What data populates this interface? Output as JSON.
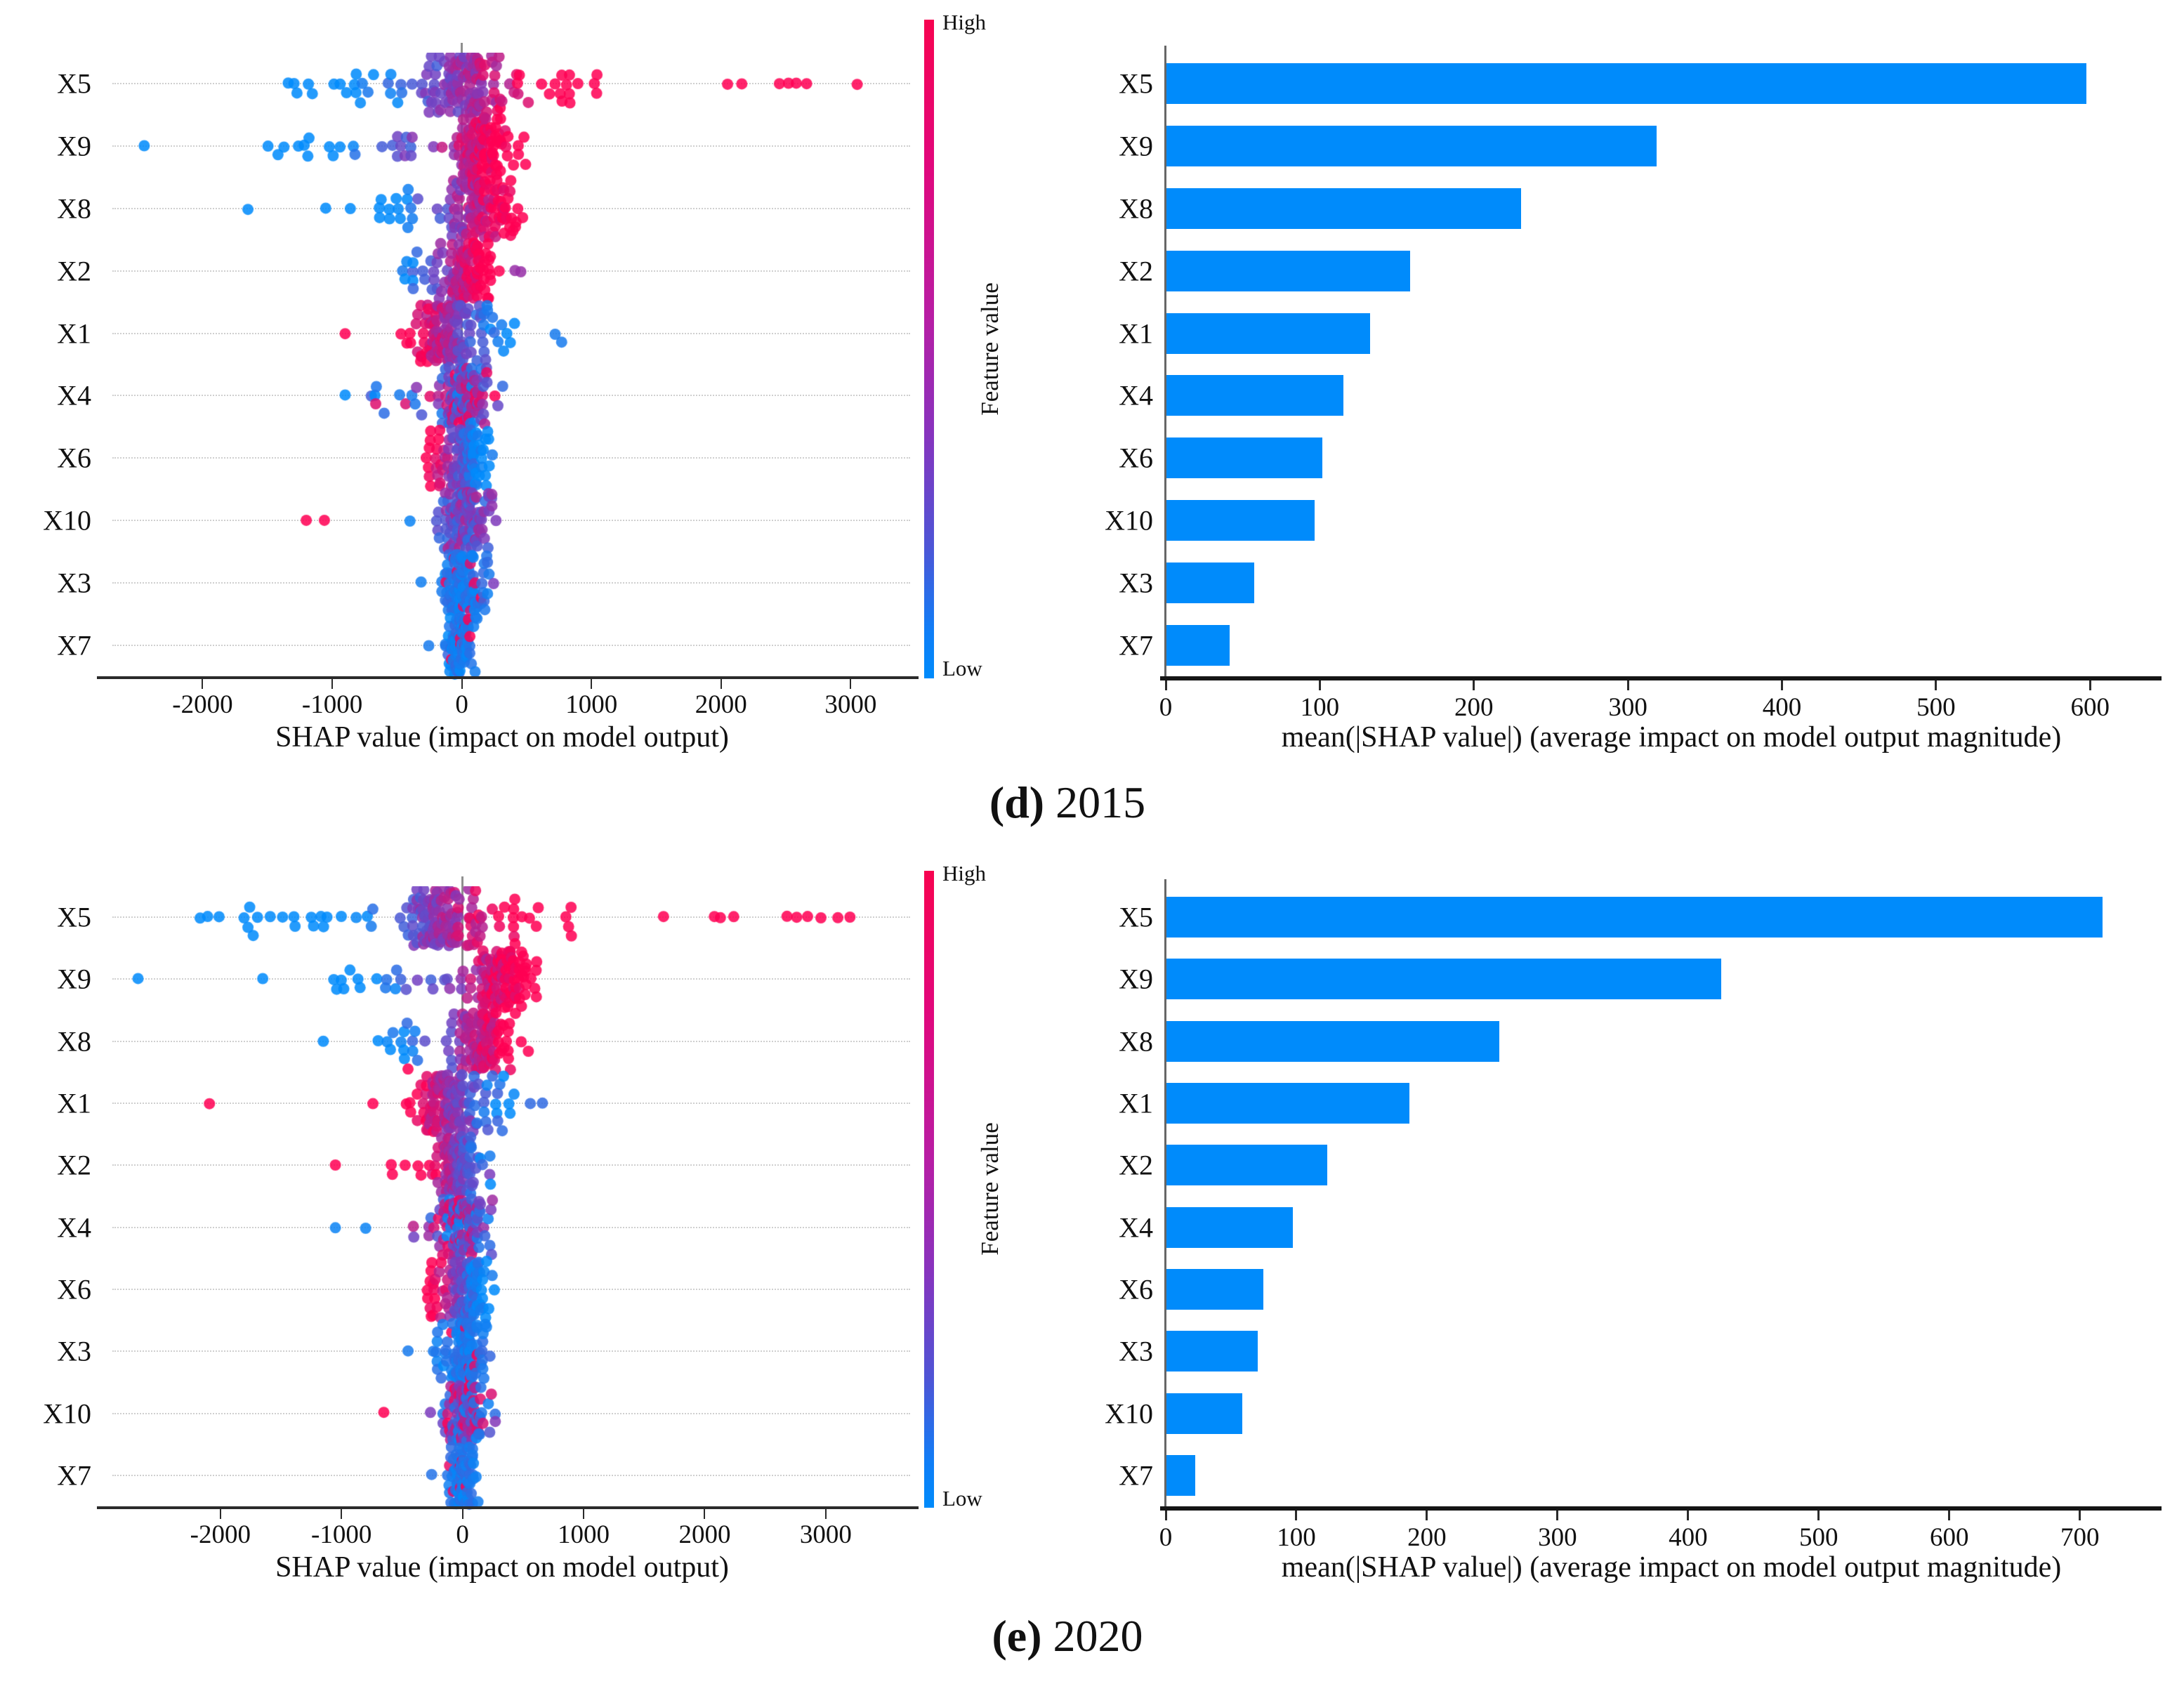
{
  "chart_data": [
    {
      "type": "scatter",
      "variant": "shap-beeswarm",
      "panel": "d",
      "caption": {
        "open": "(",
        "letter": "d",
        "close": ")",
        "year": "2015"
      },
      "xlabel": "SHAP value (impact on model output)",
      "xticks": [
        -2000,
        -1000,
        0,
        1000,
        2000,
        3000
      ],
      "xlim": [
        -2750,
        3480
      ],
      "grid": "dotted-rows",
      "categories": [
        "X5",
        "X9",
        "X8",
        "X2",
        "X1",
        "X4",
        "X6",
        "X10",
        "X3",
        "X7"
      ],
      "colorbar": {
        "high": "High",
        "low": "Low",
        "label": "Feature value",
        "top_color": "#f70350",
        "bottom_color": "#008bfb"
      },
      "point_colors": {
        "low": "#008bfb",
        "mid": "#7d3cbe",
        "high": "#ff0054"
      },
      "features": [
        {
          "label": "X5",
          "rule": "pos",
          "span": [
            -700,
            500
          ],
          "dense": {
            "center": 20,
            "sd": 150,
            "count": 115
          },
          "tails": [
            {
              "from": -1400,
              "to": -150,
              "count": 26
            },
            {
              "from": 150,
              "to": 1050,
              "count": 26
            }
          ],
          "outliers": [
            [
              2050,
              1
            ],
            [
              2160,
              1
            ],
            [
              2450,
              1
            ],
            [
              2520,
              1
            ],
            [
              2580,
              1
            ],
            [
              2660,
              1
            ],
            [
              3050,
              1
            ]
          ]
        },
        {
          "label": "X9",
          "rule": "pos",
          "span": [
            -800,
            260
          ],
          "dense": {
            "center": 120,
            "sd": 105,
            "count": 105
          },
          "tails": [
            {
              "from": -1550,
              "to": -650,
              "count": 12
            },
            {
              "from": -650,
              "to": -150,
              "count": 12
            },
            {
              "from": 160,
              "to": 520,
              "count": 8
            }
          ],
          "outliers": [
            [
              -2450,
              0
            ]
          ]
        },
        {
          "label": "X8",
          "rule": "pos",
          "span": [
            -500,
            300
          ],
          "dense": {
            "center": 120,
            "sd": 125,
            "count": 110
          },
          "tails": [
            {
              "from": -700,
              "to": -250,
              "count": 14
            },
            {
              "from": 260,
              "to": 480,
              "count": 7
            }
          ],
          "outliers": [
            [
              -1650,
              0
            ],
            [
              -1050,
              0
            ],
            [
              -860,
              0
            ]
          ]
        },
        {
          "label": "X2",
          "rule": "pos",
          "span": [
            -450,
            130
          ],
          "dense": {
            "center": 60,
            "sd": 95,
            "count": 110
          },
          "tails": [
            {
              "from": -550,
              "to": -160,
              "count": 16
            }
          ],
          "outliers": [
            [
              410,
              0.6
            ],
            [
              455,
              0.6
            ]
          ]
        },
        {
          "label": "X1",
          "rule": "neg",
          "span": [
            -350,
            330
          ],
          "dense": {
            "center": -110,
            "sd": 135,
            "count": 130
          },
          "tails": [
            {
              "from": 130,
              "to": 430,
              "count": 14
            }
          ],
          "outliers": [
            [
              -900,
              1
            ],
            [
              720,
              0.1
            ],
            [
              770,
              0.1
            ]
          ]
        },
        {
          "label": "X4",
          "rule": "mix",
          "span": [
            -300,
            300
          ],
          "dense": {
            "center": 0,
            "sd": 105,
            "count": 110
          },
          "tails": [
            {
              "from": -700,
              "to": -220,
              "count": 8
            }
          ],
          "outliers": [
            [
              -900,
              0
            ],
            [
              -670,
              0
            ],
            [
              -480,
              0.1
            ],
            [
              -385,
              0.1
            ],
            [
              255,
              1
            ],
            [
              315,
              0.2
            ]
          ]
        },
        {
          "label": "X6",
          "rule": "neg",
          "span": [
            -220,
            130
          ],
          "dense": {
            "center": 40,
            "sd": 75,
            "count": 100
          },
          "tails": [
            {
              "from": -290,
              "to": -90,
              "count": 22
            }
          ],
          "outliers": [
            [
              235,
              0.1
            ]
          ]
        },
        {
          "label": "X10",
          "rule": "purple",
          "span": [
            -200,
            200
          ],
          "dense": {
            "center": 0,
            "sd": 85,
            "count": 110
          },
          "tails": [
            {
              "from": 120,
              "to": 265,
              "count": 8
            }
          ],
          "outliers": [
            [
              -1200,
              1
            ],
            [
              -1060,
              1
            ],
            [
              -400,
              0.05
            ]
          ]
        },
        {
          "label": "X3",
          "rule": "blue",
          "span": [
            -150,
            200
          ],
          "dense": {
            "center": -10,
            "sd": 70,
            "count": 100
          },
          "tails": [
            {
              "from": 90,
              "to": 215,
              "count": 10
            }
          ],
          "outliers": [
            [
              150,
              1
            ],
            [
              245,
              0.5
            ],
            [
              95,
              0.9
            ]
          ]
        },
        {
          "label": "X7",
          "rule": "blue",
          "span": [
            -120,
            120
          ],
          "dense": {
            "center": 0,
            "sd": 52,
            "count": 92
          },
          "tails": [],
          "outliers": [
            [
              -255,
              0.1
            ],
            [
              -80,
              1
            ],
            [
              62,
              1
            ]
          ]
        }
      ]
    },
    {
      "type": "bar",
      "panel": "d",
      "xlabel": "mean(|SHAP value|) (average impact on model output magnitude)",
      "xticks": [
        0,
        100,
        200,
        300,
        400,
        500,
        600
      ],
      "xlim": [
        0,
        640
      ],
      "bar_color": "#008bfb",
      "categories": [
        "X5",
        "X9",
        "X8",
        "X2",
        "X1",
        "X4",
        "X6",
        "X10",
        "X3",
        "X7"
      ],
      "values": [
        597,
        318,
        230,
        158,
        132,
        115,
        101,
        96,
        57,
        41
      ]
    },
    {
      "type": "scatter",
      "variant": "shap-beeswarm",
      "panel": "e",
      "caption": {
        "open": "(",
        "letter": "e",
        "close": ")",
        "year": "2020"
      },
      "xlabel": "SHAP value (impact on model output)",
      "xticks": [
        -2000,
        -1000,
        0,
        1000,
        2000,
        3000
      ],
      "xlim": [
        -2950,
        3720
      ],
      "grid": "dotted-rows",
      "categories": [
        "X5",
        "X9",
        "X8",
        "X1",
        "X2",
        "X4",
        "X6",
        "X3",
        "X10",
        "X7"
      ],
      "colorbar": {
        "high": "High",
        "low": "Low",
        "label": "Feature value",
        "top_color": "#f70350",
        "bottom_color": "#008bfb"
      },
      "point_colors": {
        "low": "#008bfb",
        "mid": "#7d3cbe",
        "high": "#ff0054"
      },
      "features": [
        {
          "label": "X5",
          "rule": "pos",
          "span": [
            -900,
            320
          ],
          "dense": {
            "center": -180,
            "sd": 160,
            "count": 120
          },
          "tails": [
            {
              "from": -2200,
              "to": -550,
              "count": 22
            },
            {
              "from": 60,
              "to": 640,
              "count": 18
            },
            {
              "from": 780,
              "to": 950,
              "count": 4
            }
          ],
          "outliers": [
            [
              1660,
              1
            ],
            [
              2080,
              1
            ],
            [
              2130,
              1
            ],
            [
              2240,
              1
            ],
            [
              2680,
              1
            ],
            [
              2760,
              1
            ],
            [
              2850,
              1
            ],
            [
              2960,
              1
            ],
            [
              3100,
              1
            ],
            [
              3200,
              1
            ]
          ]
        },
        {
          "label": "X9",
          "rule": "pos",
          "span": [
            -700,
            390
          ],
          "dense": {
            "center": 330,
            "sd": 105,
            "count": 112
          },
          "tails": [
            {
              "from": -1100,
              "to": -250,
              "count": 16
            },
            {
              "from": -250,
              "to": 120,
              "count": 10
            }
          ],
          "outliers": [
            [
              -2680,
              0
            ],
            [
              -1650,
              0
            ],
            [
              565,
              1
            ],
            [
              610,
              1
            ]
          ]
        },
        {
          "label": "X8",
          "rule": "pos",
          "span": [
            -550,
            340
          ],
          "dense": {
            "center": 170,
            "sd": 135,
            "count": 112
          },
          "tails": [
            {
              "from": -700,
              "to": -260,
              "count": 14
            }
          ],
          "outliers": [
            [
              -1150,
              0
            ],
            [
              -450,
              1
            ],
            [
              485,
              1
            ]
          ]
        },
        {
          "label": "X1",
          "rule": "neg",
          "span": [
            -380,
            350
          ],
          "dense": {
            "center": -130,
            "sd": 130,
            "count": 122
          },
          "tails": [
            {
              "from": 60,
              "to": 430,
              "count": 16
            }
          ],
          "outliers": [
            [
              -2090,
              1
            ],
            [
              -740,
              1
            ],
            [
              560,
              0.2
            ],
            [
              660,
              0.2
            ]
          ]
        },
        {
          "label": "X2",
          "rule": "neg",
          "span": [
            -290,
            230
          ],
          "dense": {
            "center": -40,
            "sd": 95,
            "count": 110
          },
          "tails": [
            {
              "from": -600,
              "to": -260,
              "count": 5
            }
          ],
          "outliers": [
            [
              -1050,
              1
            ],
            [
              225,
              0.5
            ]
          ]
        },
        {
          "label": "X4",
          "rule": "mix",
          "span": [
            -300,
            300
          ],
          "dense": {
            "center": 15,
            "sd": 95,
            "count": 108
          },
          "tails": [
            {
              "from": -460,
              "to": -250,
              "count": 5
            }
          ],
          "outliers": [
            [
              -1050,
              0.05
            ],
            [
              -800,
              0.05
            ],
            [
              235,
              0.5
            ]
          ]
        },
        {
          "label": "X6",
          "rule": "neg",
          "span": [
            -230,
            140
          ],
          "dense": {
            "center": 40,
            "sd": 75,
            "count": 100
          },
          "tails": [
            {
              "from": -300,
              "to": -100,
              "count": 20
            }
          ],
          "outliers": [
            [
              245,
              0.1
            ]
          ]
        },
        {
          "label": "X3",
          "rule": "blue",
          "span": [
            -200,
            250
          ],
          "dense": {
            "center": 25,
            "sd": 90,
            "count": 110
          },
          "tails": [
            {
              "from": -260,
              "to": -130,
              "count": 8
            }
          ],
          "outliers": [
            [
              -450,
              0.1
            ],
            [
              125,
              0.9
            ],
            [
              65,
              0.9
            ]
          ]
        },
        {
          "label": "X10",
          "rule": "mix",
          "span": [
            -250,
            250
          ],
          "dense": {
            "center": -5,
            "sd": 85,
            "count": 110
          },
          "tails": [
            {
              "from": 120,
              "to": 290,
              "count": 8
            }
          ],
          "outliers": [
            [
              -650,
              1
            ],
            [
              -265,
              0.5
            ]
          ]
        },
        {
          "label": "X7",
          "rule": "blue",
          "span": [
            -130,
            130
          ],
          "dense": {
            "center": 0,
            "sd": 55,
            "count": 92
          },
          "tails": [],
          "outliers": [
            [
              -255,
              0.15
            ],
            [
              30,
              1
            ]
          ]
        }
      ]
    },
    {
      "type": "bar",
      "panel": "e",
      "xlabel": "mean(|SHAP value|) (average impact on model output magnitude)",
      "xticks": [
        0,
        100,
        200,
        300,
        400,
        500,
        600,
        700
      ],
      "xlim": [
        0,
        755
      ],
      "bar_color": "#008bfb",
      "categories": [
        "X5",
        "X9",
        "X8",
        "X1",
        "X2",
        "X4",
        "X6",
        "X3",
        "X10",
        "X7"
      ],
      "values": [
        717,
        425,
        255,
        186,
        123,
        97,
        74,
        70,
        58,
        22
      ]
    }
  ]
}
